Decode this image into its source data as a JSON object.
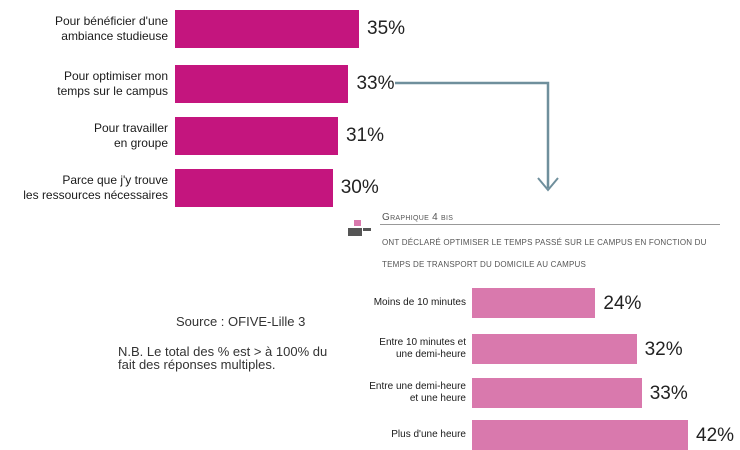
{
  "chart_data": [
    {
      "type": "bar",
      "orientation": "horizontal",
      "categories": [
        [
          "Pour bénéficier d'une",
          "ambiance studieuse"
        ],
        [
          "Pour optimiser mon",
          "temps sur le campus"
        ],
        [
          "Pour travailler",
          "en groupe"
        ],
        [
          "Parce que j'y trouve",
          "les ressources nécessaires"
        ]
      ],
      "values": [
        35,
        33,
        31,
        30
      ],
      "value_labels": [
        "35%",
        "33%",
        "31%",
        "30%"
      ],
      "color": "#c4157e"
    },
    {
      "type": "bar",
      "orientation": "horizontal",
      "title": "Graphique 4 bis",
      "subtitle": "Ont déclaré optimiser le temps passé sur le campus en fonction du temps de transport du domicile au campus",
      "categories": [
        [
          "Moins de 10 minutes"
        ],
        [
          "Entre 10 minutes et",
          "une demi-heure"
        ],
        [
          "Entre une demi-heure",
          "et une heure"
        ],
        [
          "Plus d'une heure"
        ]
      ],
      "values": [
        24,
        32,
        33,
        42
      ],
      "value_labels": [
        "24%",
        "32%",
        "33%",
        "42%"
      ],
      "color": "#d979ad"
    }
  ],
  "notes": {
    "source": "Source : OFIVE-Lille 3",
    "nb": "N.B.  Le total des % est > à 100% du fait des réponses multiples."
  }
}
